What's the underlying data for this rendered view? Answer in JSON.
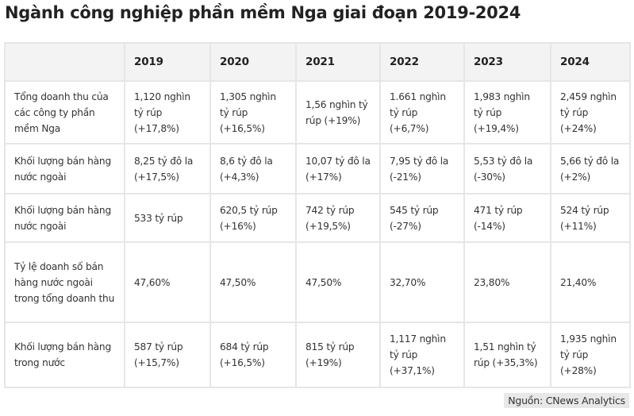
{
  "title": "Ngành công nghiệp phần mềm Nga giai đoạn 2019-2024",
  "table": {
    "headers": [
      "",
      "2019",
      "2020",
      "2021",
      "2022",
      "2023",
      "2024"
    ],
    "rows": [
      {
        "label": "Tổng doanh thu của các công ty phần mềm Nga",
        "cells": [
          "1,120 nghìn tỷ rúp (+17,8%)",
          "1,305 nghìn tỷ rúp (+16,5%)",
          "1,56 nghìn tỷ rúp (+19%)",
          "1.661 nghìn tỷ rúp (+6,7%)",
          "1,983 nghìn tỷ rúp (+19,4%)",
          "2,459 nghìn tỷ rúp (+24%)"
        ]
      },
      {
        "label": "Khối lượng bán hàng nước ngoài",
        "cells": [
          "8,25 tỷ đô la (+17,5%)",
          "8,6 tỷ đô la (+4,3%)",
          "10,07 tỷ đô la (+17%)",
          "7,95 tỷ đô la (-21%)",
          "5,53 tỷ đô la (-30%)",
          "5,66 tỷ đô la (+2%)"
        ]
      },
      {
        "label": "Khối lượng bán hàng nước ngoài",
        "cells": [
          "533 tỷ rúp",
          "620,5 tỷ rúp (+16%)",
          "742 tỷ rúp (+19,5%)",
          "545 tỷ rúp (-27%)",
          "471 tỷ rúp (-14%)",
          "524 tỷ rúp (+11%)"
        ]
      },
      {
        "label": "Tỷ lệ doanh số bán hàng nước ngoài trong tổng doanh thu",
        "cells": [
          "47,60%",
          "47,50%",
          "47,50%",
          "32,70%",
          "23,80%",
          "21,40%"
        ]
      },
      {
        "label": "Khối lượng bán hàng trong nước",
        "cells": [
          "587 tỷ rúp (+15,7%)",
          "684 tỷ rúp (+16,5%)",
          "815 tỷ rúp (+19%)",
          "1,117 nghìn tỷ rúp (+37,1%)",
          "1,51 nghìn tỷ rúp (+35,3%)",
          "1,935 nghìn tỷ rúp (+28%)"
        ]
      }
    ]
  },
  "source": "Nguồn: CNews Analytics"
}
